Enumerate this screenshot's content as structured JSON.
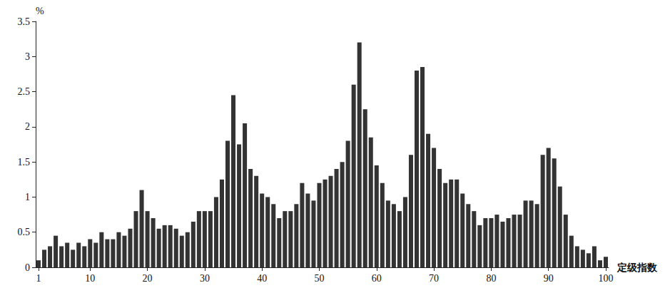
{
  "chart_data": {
    "type": "bar",
    "x_label": "定级指数",
    "y_label": "%",
    "categories": [
      "1",
      null,
      null,
      null,
      null,
      null,
      null,
      null,
      null,
      "10",
      null,
      null,
      null,
      null,
      null,
      null,
      null,
      null,
      null,
      "20",
      null,
      null,
      null,
      null,
      null,
      null,
      null,
      null,
      null,
      "30",
      null,
      null,
      null,
      null,
      null,
      null,
      null,
      null,
      null,
      "40",
      null,
      null,
      null,
      null,
      null,
      null,
      null,
      null,
      null,
      "50",
      null,
      null,
      null,
      null,
      null,
      null,
      null,
      null,
      null,
      "60",
      null,
      null,
      null,
      null,
      null,
      null,
      null,
      null,
      null,
      "70",
      null,
      null,
      null,
      null,
      null,
      null,
      null,
      null,
      null,
      "80",
      null,
      null,
      null,
      null,
      null,
      null,
      null,
      null,
      null,
      "90",
      null,
      null,
      null,
      null,
      null,
      null,
      null,
      null,
      null,
      "100"
    ],
    "values": [
      0.1,
      0.25,
      0.3,
      0.45,
      0.3,
      0.35,
      0.25,
      0.35,
      0.3,
      0.4,
      0.35,
      0.5,
      0.4,
      0.4,
      0.5,
      0.45,
      0.55,
      0.8,
      1.1,
      0.8,
      0.7,
      0.55,
      0.6,
      0.6,
      0.55,
      0.45,
      0.5,
      0.65,
      0.8,
      0.8,
      0.8,
      1.0,
      1.25,
      1.8,
      2.45,
      1.75,
      2.05,
      1.4,
      1.3,
      1.05,
      1.0,
      0.9,
      0.7,
      0.8,
      0.8,
      0.9,
      1.2,
      1.05,
      0.95,
      1.2,
      1.25,
      1.3,
      1.4,
      1.5,
      1.8,
      2.6,
      3.2,
      2.25,
      1.85,
      1.45,
      1.2,
      0.95,
      0.9,
      0.8,
      1.0,
      1.6,
      2.8,
      2.85,
      1.9,
      1.7,
      1.4,
      1.2,
      1.25,
      1.25,
      1.05,
      0.9,
      0.8,
      0.6,
      0.7,
      0.7,
      0.75,
      0.65,
      0.7,
      0.75,
      0.75,
      0.95,
      0.95,
      0.9,
      1.6,
      1.7,
      1.55,
      1.15,
      0.75,
      0.45,
      0.3,
      0.25,
      0.2,
      0.3,
      0.1,
      0.15
    ],
    "color": "#333333",
    "ylim": [
      0,
      3.5
    ],
    "yticks": [
      0,
      0.5,
      1,
      1.5,
      2,
      2.5,
      3,
      3.5
    ],
    "grid": false
  }
}
